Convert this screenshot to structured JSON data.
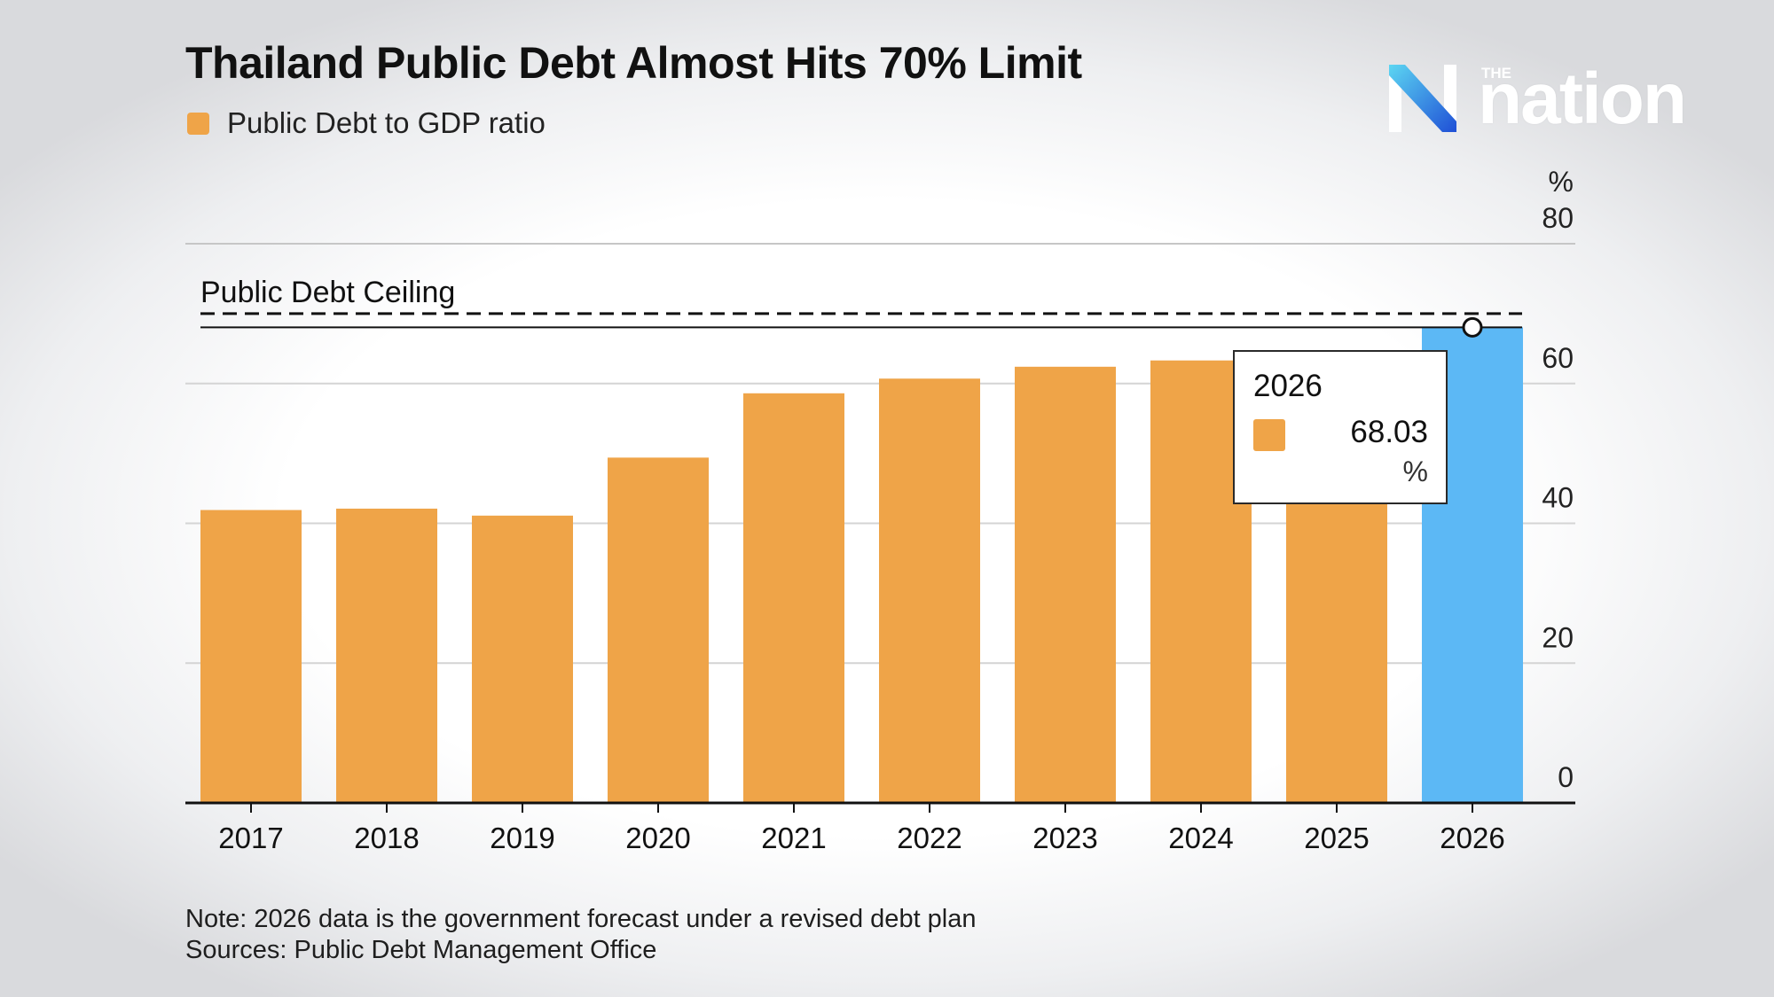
{
  "header": {
    "title": "Thailand Public Debt Almost Hits 70% Limit"
  },
  "logo": {
    "small_text": "THE",
    "wordmark": "nation",
    "icon": "the-nation-n-logo-icon"
  },
  "colors": {
    "bar": "#EFA448",
    "highlight_bar": "#5CB8F5",
    "axis": "#111111",
    "grid": "#d4d4d4"
  },
  "chart_data": {
    "type": "bar",
    "title": "Thailand Public Debt Almost Hits 70% Limit",
    "legend": [
      "Public Debt to GDP ratio"
    ],
    "legend_position": "top-left",
    "xlabel": "",
    "ylabel": "%",
    "ylim": [
      0,
      80
    ],
    "yticks": [
      0,
      20,
      40,
      60,
      80
    ],
    "grid": true,
    "categories": [
      "2017",
      "2018",
      "2019",
      "2020",
      "2021",
      "2022",
      "2023",
      "2024",
      "2025",
      "2026"
    ],
    "series": [
      {
        "name": "Public Debt to GDP ratio",
        "values": [
          41.9,
          42.1,
          41.1,
          49.4,
          58.6,
          60.7,
          62.4,
          63.3,
          64.2,
          68.03
        ]
      }
    ],
    "highlighted_category": "2026",
    "annotations": [
      {
        "label": "Public Debt Ceiling",
        "value": 70,
        "style": "dashed"
      }
    ],
    "tooltip": {
      "category": "2026",
      "value": "68.03",
      "unit": "%"
    }
  },
  "footer": {
    "note": "Note: 2026 data is the government forecast under a revised debt plan",
    "sources": "Sources: Public Debt Management Office"
  }
}
